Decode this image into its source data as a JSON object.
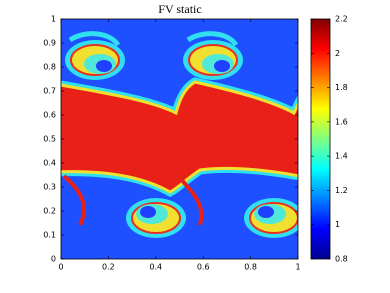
{
  "chart_data": {
    "type": "heatmap",
    "title": "FV static",
    "xlim": [
      0,
      1
    ],
    "xticks": [
      0,
      0.2,
      0.4,
      0.6,
      0.8,
      1
    ],
    "ylim": [
      0,
      1
    ],
    "yticks": [
      0,
      0.1,
      0.2,
      0.3,
      0.4,
      0.5,
      0.6,
      0.7,
      0.8,
      0.9,
      1
    ],
    "colormap": "jet",
    "clim": [
      0.8,
      2.2
    ],
    "cticks": [
      0.8,
      1,
      1.2,
      1.4,
      1.6,
      1.8,
      2,
      2.2
    ]
  }
}
